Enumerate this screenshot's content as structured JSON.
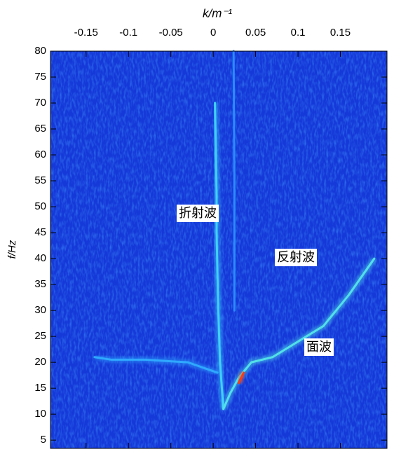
{
  "chart_data": {
    "type": "line",
    "xlabel": "k/m⁻¹",
    "ylabel": "f/Hz",
    "xlim": [
      -0.192,
      0.205
    ],
    "ylim": [
      3.4,
      80
    ],
    "xticks": [
      -0.15,
      -0.1,
      -0.05,
      0,
      0.05,
      0.1,
      0.15
    ],
    "yticks": [
      5,
      10,
      15,
      20,
      25,
      30,
      35,
      40,
      45,
      50,
      55,
      60,
      65,
      70,
      75,
      80
    ],
    "background": "#1538d8",
    "annotations": [
      "折射波",
      "反射波",
      "面波"
    ],
    "series": [
      {
        "color": "#3fd0ff",
        "x": [
          0.012,
          0.008,
          0.006,
          0.005,
          0.004,
          0.004,
          0.003,
          0.002
        ],
        "values": [
          11,
          20,
          30,
          37,
          45,
          52,
          62,
          70
        ]
      },
      {
        "color": "#52e0e8",
        "x": [
          0.012,
          0.02,
          0.03,
          0.045,
          0.07,
          0.1,
          0.13,
          0.16,
          0.19
        ],
        "values": [
          11,
          14,
          17,
          20,
          21,
          24,
          27,
          33,
          40
        ]
      },
      {
        "color": "#2fa8ff",
        "x": [
          0.005,
          -0.03,
          -0.08,
          -0.12,
          -0.14
        ],
        "values": [
          18,
          20,
          20.5,
          20.5,
          21
        ]
      },
      {
        "color": "#2a8cff",
        "x": [
          0.025,
          0.025,
          0.024
        ],
        "values": [
          30,
          55,
          80
        ]
      },
      {
        "color": "#ff3a10",
        "x": [
          0.03,
          0.036
        ],
        "values": [
          16,
          18
        ]
      }
    ]
  }
}
